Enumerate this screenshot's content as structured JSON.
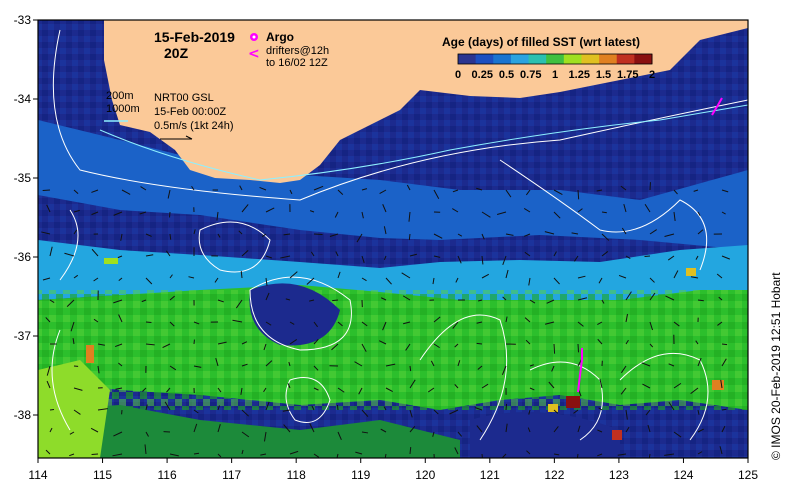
{
  "title": {
    "date": "15-Feb-2019",
    "time": "20Z"
  },
  "legend": {
    "argo_label": "Argo",
    "drifters_label": "drifters@12h",
    "drifters_to": "to 16/02 12Z",
    "colorbar_title": "Age (days) of filled SST (wrt latest)",
    "colorbar_ticks": [
      "0",
      "0.25",
      "0.5",
      "0.75",
      "1",
      "1.25",
      "1.5",
      "1.75",
      "2"
    ],
    "colorbar_colors": [
      "#2b3590",
      "#1c4fc0",
      "#1a74d0",
      "#2aa3e0",
      "#2bc0b0",
      "#40c040",
      "#a0e020",
      "#e0c020",
      "#e08020",
      "#c03020",
      "#8a1010"
    ]
  },
  "info": {
    "isobath_200": "200m",
    "isobath_1000": "1000m",
    "product": "NRT00 GSL",
    "analysis_time": "15-Feb 00:00Z",
    "vector_scale": "0.5m/s (1kt 24h)"
  },
  "axes": {
    "x_ticks": [
      "114",
      "115",
      "116",
      "117",
      "118",
      "119",
      "120",
      "121",
      "122",
      "123",
      "124",
      "125"
    ],
    "y_ticks": [
      "-33",
      "-34",
      "-35",
      "-36",
      "-37",
      "-38"
    ]
  },
  "credit": "© IMOS 20-Feb-2019 12:51 Hobart",
  "colors": {
    "land": "#fbc998",
    "ocean_old": "#1c2a8e",
    "ocean_mid": "#1b62c8",
    "ocean_light": "#23a6e0",
    "green_band": "#2cbf2c",
    "contour": "#ffffff",
    "argo": "#ff00ff"
  }
}
